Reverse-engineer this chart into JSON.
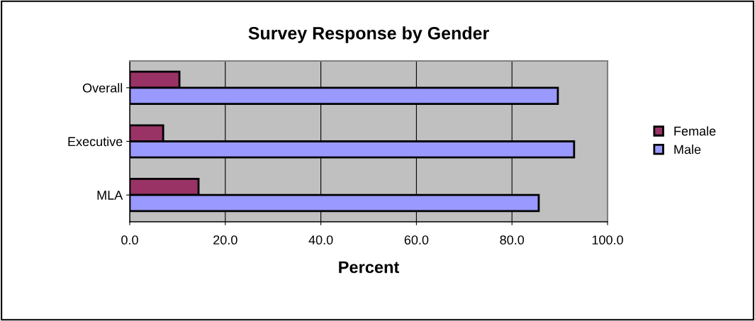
{
  "chart_data": {
    "type": "bar",
    "orientation": "horizontal",
    "title": "Survey Response by Gender",
    "xlabel": "Percent",
    "categories": [
      "Overall",
      "Executive",
      "MLA"
    ],
    "series": [
      {
        "name": "Female",
        "color": "#993366",
        "values": [
          10.4,
          7.0,
          14.4
        ]
      },
      {
        "name": "Male",
        "color": "#9999ff",
        "values": [
          89.6,
          93.0,
          85.6
        ]
      }
    ],
    "xlim": [
      0,
      100
    ],
    "xticks": [
      {
        "value": 0,
        "label": "0.0"
      },
      {
        "value": 20,
        "label": "20.0"
      },
      {
        "value": 40,
        "label": "40.0"
      },
      {
        "value": 60,
        "label": "60.0"
      },
      {
        "value": 80,
        "label": "80.0"
      },
      {
        "value": 100,
        "label": "100.0"
      }
    ],
    "grid": "x",
    "legend": "right"
  }
}
